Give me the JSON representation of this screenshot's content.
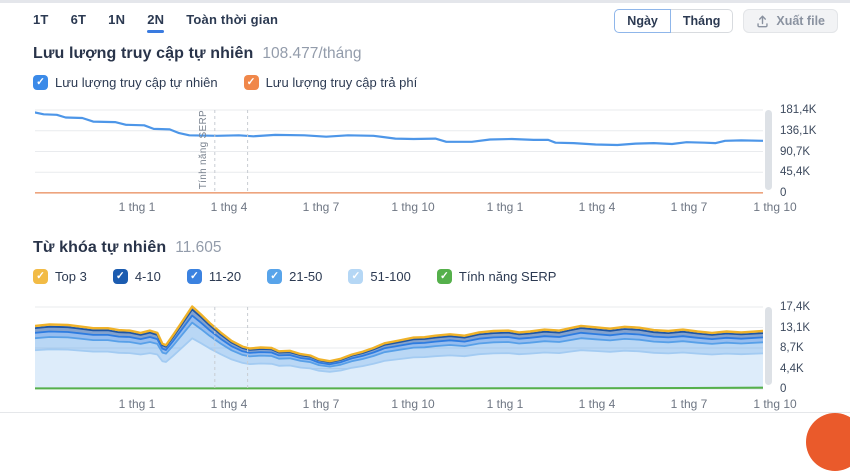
{
  "toolbar": {
    "ranges": [
      {
        "label": "1T",
        "active": false
      },
      {
        "label": "6T",
        "active": false
      },
      {
        "label": "1N",
        "active": false
      },
      {
        "label": "2N",
        "active": true
      },
      {
        "label": "Toàn thời gian",
        "active": false
      }
    ],
    "granularity": [
      {
        "label": "Ngày",
        "selected": true
      },
      {
        "label": "Tháng",
        "selected": false
      }
    ],
    "export_label": "Xuất file"
  },
  "traffic_section": {
    "title": "Lưu lượng truy cập tự nhiên",
    "value": "108.477/tháng",
    "legend": [
      {
        "label": "Lưu lượng truy cập tự nhiên",
        "color": "#3b8ae8",
        "checked": true
      },
      {
        "label": "Lưu lượng truy cập trả phí",
        "color": "#f0874a",
        "checked": true
      }
    ]
  },
  "keywords_section": {
    "title": "Từ khóa tự nhiên",
    "value": "11.605",
    "legend": [
      {
        "label": "Top 3",
        "color": "#f2bb45",
        "checked": true
      },
      {
        "label": "4-10",
        "color": "#1c5cb0",
        "checked": true
      },
      {
        "label": "11-20",
        "color": "#3b82e0",
        "checked": true
      },
      {
        "label": "21-50",
        "color": "#58a4ea",
        "checked": true
      },
      {
        "label": "51-100",
        "color": "#b5d7f5",
        "checked": true
      },
      {
        "label": "Tính năng SERP",
        "color": "#55b04b",
        "checked": true
      }
    ]
  },
  "chart_data": [
    {
      "type": "line",
      "title": "Lưu lượng truy cập tự nhiên",
      "ylim": [
        0,
        181400
      ],
      "y_ticks": [
        "181,4K",
        "136,1K",
        "90,7K",
        "45,4K",
        "0"
      ],
      "y_tick_values": [
        181400,
        136050,
        90700,
        45350,
        0
      ],
      "x_ticks": [
        "1 thg 1",
        "1 thg 4",
        "1 thg 7",
        "1 thg 10",
        "1 thg 1",
        "1 thg 4",
        "1 thg 7",
        "1 thg 10"
      ],
      "x_tick_fr": [
        0.14,
        0.266,
        0.393,
        0.519,
        0.646,
        0.772,
        0.898,
        1.016
      ],
      "annotations": [
        {
          "x": 0.247,
          "label": "Tính năng SERP"
        },
        {
          "x": 0.292,
          "label": ""
        }
      ],
      "series": [
        {
          "name": "Lưu lượng truy cập tự nhiên",
          "color": "#4d96e8",
          "width": 2.2,
          "points": [
            [
              0,
              176000
            ],
            [
              0.012,
              172000
            ],
            [
              0.03,
              171000
            ],
            [
              0.042,
              165000
            ],
            [
              0.065,
              164000
            ],
            [
              0.08,
              156000
            ],
            [
              0.11,
              155000
            ],
            [
              0.125,
              149000
            ],
            [
              0.15,
              148000
            ],
            [
              0.163,
              140000
            ],
            [
              0.185,
              139000
            ],
            [
              0.198,
              131000
            ],
            [
              0.212,
              126000
            ],
            [
              0.25,
              125000
            ],
            [
              0.28,
              126000
            ],
            [
              0.3,
              124000
            ],
            [
              0.33,
              127000
            ],
            [
              0.37,
              126000
            ],
            [
              0.4,
              123000
            ],
            [
              0.43,
              126000
            ],
            [
              0.465,
              125000
            ],
            [
              0.495,
              119000
            ],
            [
              0.52,
              118000
            ],
            [
              0.55,
              119000
            ],
            [
              0.565,
              112000
            ],
            [
              0.6,
              112000
            ],
            [
              0.625,
              117000
            ],
            [
              0.655,
              118000
            ],
            [
              0.685,
              116000
            ],
            [
              0.705,
              116000
            ],
            [
              0.715,
              110000
            ],
            [
              0.74,
              109000
            ],
            [
              0.77,
              106000
            ],
            [
              0.8,
              105000
            ],
            [
              0.825,
              108000
            ],
            [
              0.85,
              109000
            ],
            [
              0.875,
              107000
            ],
            [
              0.895,
              111000
            ],
            [
              0.92,
              110000
            ],
            [
              0.935,
              109000
            ],
            [
              0.948,
              114000
            ],
            [
              0.97,
              115000
            ],
            [
              1,
              114000
            ]
          ]
        },
        {
          "name": "Lưu lượng truy cập trả phí",
          "color": "#edA47e",
          "width": 1.6,
          "points": [
            [
              0,
              500
            ],
            [
              1,
              500
            ]
          ]
        }
      ]
    },
    {
      "type": "stacked_area",
      "title": "Từ khóa tự nhiên",
      "ylim": [
        0,
        17400
      ],
      "y_ticks": [
        "17,4K",
        "13,1K",
        "8,7K",
        "4,4K",
        "0"
      ],
      "y_tick_values": [
        17400,
        13050,
        8700,
        4350,
        0
      ],
      "x_ticks": [
        "1 thg 1",
        "1 thg 4",
        "1 thg 7",
        "1 thg 10",
        "1 thg 1",
        "1 thg 4",
        "1 thg 7",
        "1 thg 10"
      ],
      "x_tick_fr": [
        0.14,
        0.266,
        0.393,
        0.519,
        0.646,
        0.772,
        0.898,
        1.016
      ],
      "annotations": [
        {
          "x": 0.247,
          "label": ""
        },
        {
          "x": 0.292,
          "label": ""
        }
      ],
      "total_points": [
        [
          0,
          13400
        ],
        [
          0.02,
          13700
        ],
        [
          0.045,
          13600
        ],
        [
          0.06,
          13300
        ],
        [
          0.08,
          12900
        ],
        [
          0.1,
          12900
        ],
        [
          0.115,
          12500
        ],
        [
          0.13,
          12400
        ],
        [
          0.145,
          11900
        ],
        [
          0.158,
          12400
        ],
        [
          0.168,
          11900
        ],
        [
          0.175,
          9600
        ],
        [
          0.18,
          9300
        ],
        [
          0.19,
          11500
        ],
        [
          0.2,
          13800
        ],
        [
          0.216,
          17500
        ],
        [
          0.228,
          15800
        ],
        [
          0.24,
          14000
        ],
        [
          0.255,
          12000
        ],
        [
          0.27,
          10200
        ],
        [
          0.285,
          9000
        ],
        [
          0.295,
          8600
        ],
        [
          0.31,
          8800
        ],
        [
          0.325,
          8700
        ],
        [
          0.335,
          8000
        ],
        [
          0.35,
          8100
        ],
        [
          0.365,
          7400
        ],
        [
          0.378,
          7100
        ],
        [
          0.39,
          6300
        ],
        [
          0.405,
          5900
        ],
        [
          0.42,
          6400
        ],
        [
          0.435,
          7300
        ],
        [
          0.45,
          7900
        ],
        [
          0.465,
          8700
        ],
        [
          0.48,
          9700
        ],
        [
          0.5,
          10300
        ],
        [
          0.52,
          10900
        ],
        [
          0.535,
          11000
        ],
        [
          0.55,
          11300
        ],
        [
          0.57,
          11600
        ],
        [
          0.59,
          11300
        ],
        [
          0.61,
          12000
        ],
        [
          0.63,
          12300
        ],
        [
          0.65,
          12400
        ],
        [
          0.665,
          12000
        ],
        [
          0.68,
          12200
        ],
        [
          0.7,
          12600
        ],
        [
          0.72,
          12400
        ],
        [
          0.735,
          12900
        ],
        [
          0.75,
          13400
        ],
        [
          0.77,
          13100
        ],
        [
          0.79,
          12800
        ],
        [
          0.81,
          13200
        ],
        [
          0.83,
          13000
        ],
        [
          0.85,
          12500
        ],
        [
          0.87,
          12300
        ],
        [
          0.89,
          12600
        ],
        [
          0.91,
          12200
        ],
        [
          0.93,
          11900
        ],
        [
          0.95,
          12200
        ],
        [
          0.97,
          12000
        ],
        [
          1,
          12300
        ]
      ],
      "serp_points": [
        [
          0,
          130
        ],
        [
          0.55,
          130
        ],
        [
          0.75,
          160
        ],
        [
          0.9,
          220
        ],
        [
          1,
          300
        ]
      ],
      "bands": [
        {
          "name": "Top 3",
          "color": "#efb229",
          "fill": "rgba(239,178,41,0.30)",
          "top_share": 1.0
        },
        {
          "name": "4-10",
          "color": "#1d55a5",
          "fill": "rgba(29,85,165,0.55)",
          "top_share": 0.965
        },
        {
          "name": "11-20",
          "color": "#2e7ce0",
          "fill": "rgba(46,124,224,0.50)",
          "top_share": 0.89
        },
        {
          "name": "21-50",
          "color": "#58a0e8",
          "fill": "rgba(88,160,232,0.42)",
          "top_share": 0.805
        },
        {
          "name": "51-100",
          "color": "#a3cbf2",
          "fill": "#ddecfa",
          "top_share": 0.615
        }
      ],
      "serp_band": {
        "name": "Tính năng SERP",
        "color": "#55b04b",
        "fill": "rgba(85,176,75,0.25)"
      }
    }
  ]
}
